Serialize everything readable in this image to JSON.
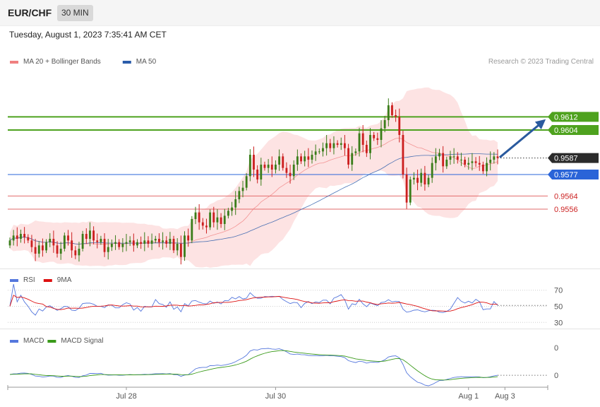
{
  "header": {
    "symbol": "EUR/CHF",
    "timeframe": "30 MIN",
    "datetime": "Tuesday, August 1, 2023 7:35:41 AM CET"
  },
  "legend_main": [
    {
      "label": "MA 20 + Bollinger Bands",
      "color": "#f08080"
    },
    {
      "label": "MA 50",
      "color": "#2a5caa"
    }
  ],
  "legend_rsi": [
    {
      "label": "RSI",
      "color": "#5577dd"
    },
    {
      "label": "9MA",
      "color": "#dd1111"
    }
  ],
  "legend_macd": [
    {
      "label": "MACD",
      "color": "#5577dd"
    },
    {
      "label": "MACD Signal",
      "color": "#3a9a1a"
    }
  ],
  "credit": "Research © 2023 Trading Central",
  "colors": {
    "up": "#3a7d1a",
    "down": "#cc1f1f",
    "band": "#fde0e0",
    "green_level": "#4ea21e",
    "blue_level": "#2a64d8",
    "red_level": "#e26b6b",
    "price": "#333333"
  },
  "chart_data": [
    {
      "type": "candlestick",
      "panel": "price",
      "ylim": [
        0.952,
        0.964
      ],
      "x_ticks": [
        "Jul 28",
        "Jul 30",
        "Aug 1",
        "Aug 3"
      ],
      "levels": [
        {
          "value": 0.9612,
          "label": "0.9612",
          "kind": "resistance"
        },
        {
          "value": 0.9604,
          "label": "0.9604",
          "kind": "resistance"
        },
        {
          "value": 0.9587,
          "label": "0.9587",
          "kind": "last"
        },
        {
          "value": 0.9577,
          "label": "0.9577",
          "kind": "pivot"
        },
        {
          "value": 0.9564,
          "label": "0.9564",
          "kind": "support"
        },
        {
          "value": 0.9556,
          "label": "0.9556",
          "kind": "support"
        }
      ],
      "target": 0.9612,
      "closes": [
        0.9537,
        0.954,
        0.9538,
        0.9541,
        0.9539,
        0.9537,
        0.9533,
        0.9529,
        0.9534,
        0.9531,
        0.9536,
        0.9538,
        0.9534,
        0.9529,
        0.9532,
        0.954,
        0.9537,
        0.9531,
        0.9528,
        0.9532,
        0.9541,
        0.9538,
        0.9543,
        0.9537,
        0.9536,
        0.9538,
        0.953,
        0.9533,
        0.9535,
        0.9536,
        0.9533,
        0.9535,
        0.9536,
        0.9537,
        0.9534,
        0.9536,
        0.9535,
        0.9537,
        0.9535,
        0.9537,
        0.9538,
        0.9536,
        0.9537,
        0.9535,
        0.9538,
        0.9531,
        0.9535,
        0.9527,
        0.954,
        0.9537,
        0.955,
        0.9554,
        0.9548,
        0.9546,
        0.9545,
        0.9554,
        0.9548,
        0.9551,
        0.9547,
        0.9552,
        0.9555,
        0.9557,
        0.9562,
        0.9567,
        0.9569,
        0.9576,
        0.9589,
        0.958,
        0.9574,
        0.9583,
        0.9581,
        0.9583,
        0.958,
        0.9583,
        0.9588,
        0.9581,
        0.9578,
        0.9576,
        0.9583,
        0.9588,
        0.9585,
        0.9588,
        0.9586,
        0.9589,
        0.9591,
        0.9591,
        0.9593,
        0.9596,
        0.9593,
        0.9596,
        0.9595,
        0.9596,
        0.9593,
        0.9583,
        0.959,
        0.9591,
        0.9602,
        0.9595,
        0.959,
        0.9601,
        0.9599,
        0.9598,
        0.9605,
        0.961,
        0.9619,
        0.9613,
        0.9612,
        0.9601,
        0.9577,
        0.956,
        0.9574,
        0.9575,
        0.9572,
        0.9578,
        0.9571,
        0.9575,
        0.9584,
        0.9588,
        0.959,
        0.9582,
        0.9586,
        0.9588,
        0.9588,
        0.9586,
        0.9586,
        0.9583,
        0.9584,
        0.9585,
        0.9584,
        0.9583,
        0.9579,
        0.9584,
        0.9586,
        0.9588,
        0.9587
      ]
    },
    {
      "type": "line",
      "panel": "RSI",
      "ylim": [
        25,
        75
      ],
      "y_ticks": [
        70,
        50,
        30
      ],
      "series": [
        {
          "name": "RSI",
          "source": "closes",
          "period": 14
        },
        {
          "name": "9MA",
          "source": "RSI",
          "period": 9
        }
      ]
    },
    {
      "type": "line",
      "panel": "MACD",
      "y_ticks": [
        "0",
        "0"
      ],
      "series": [
        {
          "name": "MACD",
          "fast": 12,
          "slow": 26
        },
        {
          "name": "MACD Signal",
          "period": 9
        }
      ]
    }
  ]
}
